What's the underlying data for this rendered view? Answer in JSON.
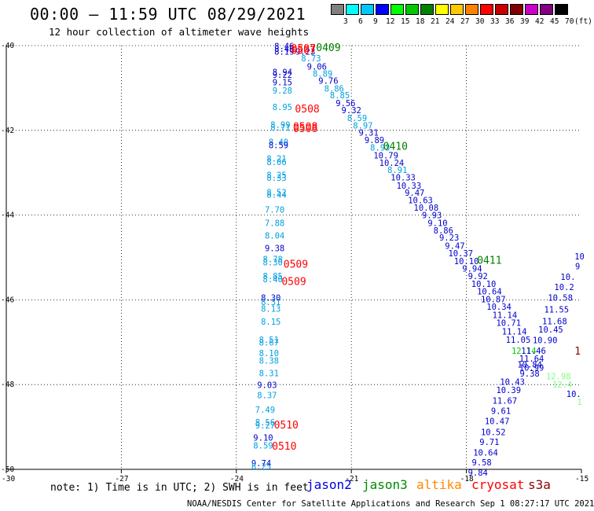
{
  "header": {
    "title": "00:00 – 11:59 UTC 08/29/2021",
    "subtitle": "12 hour collection of altimeter wave heights"
  },
  "legend": {
    "unit": "(ft)",
    "bins": [
      {
        "label": "3",
        "color": "#808080"
      },
      {
        "label": "6",
        "color": "#00ffff"
      },
      {
        "label": "9",
        "color": "#00c8ff"
      },
      {
        "label": "12",
        "color": "#0000ff"
      },
      {
        "label": "15",
        "color": "#00ff00"
      },
      {
        "label": "18",
        "color": "#00c800"
      },
      {
        "label": "21",
        "color": "#008200"
      },
      {
        "label": "24",
        "color": "#ffff00"
      },
      {
        "label": "27",
        "color": "#ffc800"
      },
      {
        "label": "30",
        "color": "#ff8200"
      },
      {
        "label": "33",
        "color": "#ff0000"
      },
      {
        "label": "36",
        "color": "#c80000"
      },
      {
        "label": "39",
        "color": "#820000"
      },
      {
        "label": "42",
        "color": "#c800c8"
      },
      {
        "label": "45",
        "color": "#820082"
      },
      {
        "label": "70",
        "color": "#000000"
      }
    ]
  },
  "footer": {
    "note": "note: 1) Time is in UTC; 2) SWH is in feet",
    "satellites": [
      {
        "name": "jason2",
        "color": "#0000dd"
      },
      {
        "name": "jason3",
        "color": "#008800"
      },
      {
        "name": "altika",
        "color": "#ff8800"
      },
      {
        "name": "cryosat",
        "color": "#ff0000"
      },
      {
        "name": "s3a",
        "color": "#8b0000"
      }
    ],
    "credit": "NOAA/NESDIS Center for Satellite Applications and Research   Sep  1 08:27:17 UTC 2021"
  },
  "colors": {
    "cyan_track": "#00a0e0",
    "blue_track": "#0000cc",
    "time_red": "#ff0000",
    "time_green": "#008000",
    "light_green": "#7fff7f",
    "dark_red": "#8b0000"
  },
  "chart_data": {
    "type": "scatter",
    "title": "00:00 – 11:59 UTC 08/29/2021",
    "subtitle": "12 hour collection of altimeter wave heights",
    "xlabel": "",
    "ylabel": "",
    "xlim": [
      -30,
      -15
    ],
    "ylim": [
      -50,
      -40
    ],
    "x_ticks": [
      "-30",
      "-27",
      "-24",
      "-21",
      "-18",
      "-15"
    ],
    "y_ticks": [
      "-40",
      "-42",
      "-44",
      "-46",
      "-48",
      "-50"
    ],
    "grid": true,
    "point_labels": [
      {
        "t": "8.46",
        "x": -22.75,
        "y": -40.01,
        "c": "#0000cc"
      },
      {
        "t": "8.46",
        "x": -22.75,
        "y": -40.07,
        "c": "#0000cc"
      },
      {
        "t": "8.19",
        "x": -22.75,
        "y": -40.14,
        "c": "#0000cc"
      },
      {
        "t": "9.23",
        "x": -22.2,
        "y": -40.14,
        "c": "#0000cc"
      },
      {
        "t": "8.73",
        "x": -22.05,
        "y": -40.3,
        "c": "#00a0e0"
      },
      {
        "t": "9.06",
        "x": -21.9,
        "y": -40.49,
        "c": "#0000cc"
      },
      {
        "t": "8.94",
        "x": -22.8,
        "y": -40.62,
        "c": "#0000cc"
      },
      {
        "t": "9.22",
        "x": -22.8,
        "y": -40.69,
        "c": "#0000cc"
      },
      {
        "t": "8.89",
        "x": -21.75,
        "y": -40.66,
        "c": "#00a0e0"
      },
      {
        "t": "9.15",
        "x": -22.8,
        "y": -40.86,
        "c": "#0000cc"
      },
      {
        "t": "9.76",
        "x": -21.6,
        "y": -40.83,
        "c": "#0000cc"
      },
      {
        "t": "8.86",
        "x": -21.45,
        "y": -41.01,
        "c": "#00a0e0"
      },
      {
        "t": "9.28",
        "x": -22.8,
        "y": -41.06,
        "c": "#00a0e0"
      },
      {
        "t": "8.85",
        "x": -21.3,
        "y": -41.17,
        "c": "#00a0e0"
      },
      {
        "t": "9.56",
        "x": -21.15,
        "y": -41.35,
        "c": "#0000cc"
      },
      {
        "t": "8.95",
        "x": -22.8,
        "y": -41.45,
        "c": "#00a0e0"
      },
      {
        "t": "9.32",
        "x": -21.0,
        "y": -41.52,
        "c": "#0000cc"
      },
      {
        "t": "8.59",
        "x": -20.85,
        "y": -41.71,
        "c": "#00a0e0"
      },
      {
        "t": "8.99",
        "x": -22.85,
        "y": -41.86,
        "c": "#00a0e0"
      },
      {
        "t": "8.71",
        "x": -22.85,
        "y": -41.93,
        "c": "#00a0e0"
      },
      {
        "t": "8.97",
        "x": -20.7,
        "y": -41.88,
        "c": "#00a0e0"
      },
      {
        "t": "9.31",
        "x": -20.55,
        "y": -42.05,
        "c": "#0000cc"
      },
      {
        "t": "9.89",
        "x": -20.4,
        "y": -42.23,
        "c": "#0000cc"
      },
      {
        "t": "8.40",
        "x": -22.9,
        "y": -42.27,
        "c": "#00a0e0"
      },
      {
        "t": "8.59",
        "x": -22.9,
        "y": -42.35,
        "c": "#0000cc"
      },
      {
        "t": "8.93",
        "x": -20.25,
        "y": -42.4,
        "c": "#00a0e0"
      },
      {
        "t": "10.79",
        "x": -20.1,
        "y": -42.59,
        "c": "#0000cc"
      },
      {
        "t": "8.21",
        "x": -22.95,
        "y": -42.66,
        "c": "#00a0e0"
      },
      {
        "t": "8.06",
        "x": -22.95,
        "y": -42.75,
        "c": "#00a0e0"
      },
      {
        "t": "10.24",
        "x": -19.95,
        "y": -42.76,
        "c": "#0000cc"
      },
      {
        "t": "8.91",
        "x": -19.8,
        "y": -42.93,
        "c": "#00a0e0"
      },
      {
        "t": "8.25",
        "x": -22.95,
        "y": -43.05,
        "c": "#00a0e0"
      },
      {
        "t": "8.33",
        "x": -22.95,
        "y": -43.12,
        "c": "#00a0e0"
      },
      {
        "t": "10.33",
        "x": -19.65,
        "y": -43.11,
        "c": "#0000cc"
      },
      {
        "t": "10.33",
        "x": -19.5,
        "y": -43.3,
        "c": "#0000cc"
      },
      {
        "t": "8.52",
        "x": -22.95,
        "y": -43.46,
        "c": "#00a0e0"
      },
      {
        "t": "8.44",
        "x": -22.95,
        "y": -43.52,
        "c": "#00a0e0"
      },
      {
        "t": "9.47",
        "x": -19.35,
        "y": -43.47,
        "c": "#0000cc"
      },
      {
        "t": "10.63",
        "x": -19.2,
        "y": -43.65,
        "c": "#0000cc"
      },
      {
        "t": "10.08",
        "x": -19.05,
        "y": -43.82,
        "c": "#0000cc"
      },
      {
        "t": "7.70",
        "x": -23.0,
        "y": -43.87,
        "c": "#00a0e0"
      },
      {
        "t": "9.93",
        "x": -18.9,
        "y": -44.0,
        "c": "#0000cc"
      },
      {
        "t": "7.88",
        "x": -23.0,
        "y": -44.18,
        "c": "#00a0e0"
      },
      {
        "t": "9.10",
        "x": -18.75,
        "y": -44.18,
        "c": "#0000cc"
      },
      {
        "t": "8.86",
        "x": -18.6,
        "y": -44.36,
        "c": "#0000cc"
      },
      {
        "t": "8.04",
        "x": -23.0,
        "y": -44.48,
        "c": "#00a0e0"
      },
      {
        "t": "9.23",
        "x": -18.45,
        "y": -44.53,
        "c": "#0000cc"
      },
      {
        "t": "9.38",
        "x": -23.0,
        "y": -44.78,
        "c": "#0000cc"
      },
      {
        "t": "9.47",
        "x": -18.3,
        "y": -44.72,
        "c": "#0000cc"
      },
      {
        "t": "8.78",
        "x": -23.05,
        "y": -45.04,
        "c": "#00a0e0"
      },
      {
        "t": "8.30",
        "x": -23.05,
        "y": -45.11,
        "c": "#00a0e0"
      },
      {
        "t": "10.37",
        "x": -18.15,
        "y": -44.9,
        "c": "#0000cc"
      },
      {
        "t": "10.10",
        "x": -18.0,
        "y": -45.08,
        "c": "#0000cc"
      },
      {
        "t": "9.94",
        "x": -17.85,
        "y": -45.26,
        "c": "#0000cc"
      },
      {
        "t": "8.85",
        "x": -23.05,
        "y": -45.44,
        "c": "#00a0e0"
      },
      {
        "t": "8.40",
        "x": -23.05,
        "y": -45.51,
        "c": "#00a0e0"
      },
      {
        "t": "9.92",
        "x": -17.7,
        "y": -45.44,
        "c": "#0000cc"
      },
      {
        "t": "10.10",
        "x": -17.55,
        "y": -45.62,
        "c": "#0000cc"
      },
      {
        "t": "10.64",
        "x": -17.4,
        "y": -45.8,
        "c": "#0000cc"
      },
      {
        "t": "8.30",
        "x": -23.1,
        "y": -45.95,
        "c": "#0000cc"
      },
      {
        "t": "8.31",
        "x": -23.1,
        "y": -46.05,
        "c": "#00a0e0"
      },
      {
        "t": "10.87",
        "x": -17.3,
        "y": -45.98,
        "c": "#0000cc"
      },
      {
        "t": "8.13",
        "x": -23.1,
        "y": -46.21,
        "c": "#00a0e0"
      },
      {
        "t": "10.34",
        "x": -17.15,
        "y": -46.16,
        "c": "#0000cc"
      },
      {
        "t": "11.14",
        "x": -17.0,
        "y": -46.35,
        "c": "#0000cc"
      },
      {
        "t": "8.15",
        "x": -23.1,
        "y": -46.51,
        "c": "#00a0e0"
      },
      {
        "t": "10.71",
        "x": -16.9,
        "y": -46.54,
        "c": "#0000cc"
      },
      {
        "t": "11.14",
        "x": -16.75,
        "y": -46.74,
        "c": "#0000cc"
      },
      {
        "t": "8.51",
        "x": -23.15,
        "y": -46.94,
        "c": "#00a0e0"
      },
      {
        "t": "8.67",
        "x": -23.15,
        "y": -47.0,
        "c": "#00a0e0"
      },
      {
        "t": "11.05",
        "x": -16.65,
        "y": -46.94,
        "c": "#0000cc"
      },
      {
        "t": "8.10",
        "x": -23.15,
        "y": -47.25,
        "c": "#00a0e0"
      },
      {
        "t": "8.38",
        "x": -23.15,
        "y": -47.43,
        "c": "#00a0e0"
      },
      {
        "t": "8.31",
        "x": -23.15,
        "y": -47.73,
        "c": "#00a0e0"
      },
      {
        "t": "9.03",
        "x": -23.2,
        "y": -48.01,
        "c": "#0000cc"
      },
      {
        "t": "8.37",
        "x": -23.2,
        "y": -48.25,
        "c": "#00a0e0"
      },
      {
        "t": "7.49",
        "x": -23.25,
        "y": -48.59,
        "c": "#00a0e0"
      },
      {
        "t": "8.56",
        "x": -23.25,
        "y": -48.89,
        "c": "#00a0e0"
      },
      {
        "t": "9.27",
        "x": -23.25,
        "y": -48.96,
        "c": "#00a0e0"
      },
      {
        "t": "9.10",
        "x": -23.3,
        "y": -49.25,
        "c": "#0000cc"
      },
      {
        "t": "8.59",
        "x": -23.3,
        "y": -49.43,
        "c": "#00a0e0"
      },
      {
        "t": "9.74",
        "x": -23.35,
        "y": -49.85,
        "c": "#0000cc"
      },
      {
        "t": "8.25",
        "x": -23.35,
        "y": -49.93,
        "c": "#00a0e0"
      },
      {
        "t": "10.43",
        "x": -16.8,
        "y": -47.93,
        "c": "#0000cc"
      },
      {
        "t": "10.39",
        "x": -16.9,
        "y": -48.13,
        "c": "#0000cc"
      },
      {
        "t": "11.67",
        "x": -17.0,
        "y": -48.38,
        "c": "#0000cc"
      },
      {
        "t": "9.61",
        "x": -17.1,
        "y": -48.62,
        "c": "#0000cc"
      },
      {
        "t": "10.47",
        "x": -17.2,
        "y": -48.86,
        "c": "#0000cc"
      },
      {
        "t": "10.52",
        "x": -17.3,
        "y": -49.12,
        "c": "#0000cc"
      },
      {
        "t": "9.71",
        "x": -17.4,
        "y": -49.35,
        "c": "#0000cc"
      },
      {
        "t": "10.64",
        "x": -17.5,
        "y": -49.6,
        "c": "#0000cc"
      },
      {
        "t": "9.58",
        "x": -17.6,
        "y": -49.83,
        "c": "#0000cc"
      },
      {
        "t": "9.84",
        "x": -17.7,
        "y": -50.07,
        "c": "#0000cc"
      },
      {
        "t": "10.45",
        "x": -15.8,
        "y": -46.7,
        "c": "#0000cc"
      },
      {
        "t": "10.90",
        "x": -15.95,
        "y": -46.95,
        "c": "#0000cc"
      },
      {
        "t": "12.14",
        "x": -16.5,
        "y": -47.2,
        "c": "#00c800"
      },
      {
        "t": "11.46",
        "x": -16.25,
        "y": -47.2,
        "c": "#0000cc"
      },
      {
        "t": "11.64",
        "x": -16.3,
        "y": -47.38,
        "c": "#0000cc"
      },
      {
        "t": "10.84",
        "x": -16.35,
        "y": -47.52,
        "c": "#0000cc"
      },
      {
        "t": "10.99",
        "x": -16.3,
        "y": -47.6,
        "c": "#0000cc"
      },
      {
        "t": "9.38",
        "x": -16.35,
        "y": -47.74,
        "c": "#0000cc"
      },
      {
        "t": "11.68",
        "x": -15.7,
        "y": -46.5,
        "c": "#0000cc"
      },
      {
        "t": "11.55",
        "x": -15.65,
        "y": -46.22,
        "c": "#0000cc"
      },
      {
        "t": "10.58",
        "x": -15.55,
        "y": -45.95,
        "c": "#0000cc"
      },
      {
        "t": "10.2",
        "x": -15.45,
        "y": -45.7,
        "c": "#0000cc"
      },
      {
        "t": "10.",
        "x": -15.35,
        "y": -45.45,
        "c": "#0000cc"
      },
      {
        "t": "9",
        "x": -15.1,
        "y": -45.2,
        "c": "#0000cc"
      },
      {
        "t": "10",
        "x": -15.05,
        "y": -44.97,
        "c": "#0000cc"
      },
      {
        "t": "12.98",
        "x": -15.6,
        "y": -47.8,
        "c": "#7fff7f"
      },
      {
        "t": "12.4",
        "x": -15.5,
        "y": -48.0,
        "c": "#7fff7f"
      },
      {
        "t": "10.",
        "x": -15.2,
        "y": -48.22,
        "c": "#0000cc"
      },
      {
        "t": "1",
        "x": -15.05,
        "y": -48.4,
        "c": "#7fff7f"
      }
    ],
    "time_labels": [
      {
        "t": "0507",
        "x": -22.25,
        "y": -40.06,
        "c": "#ff0000"
      },
      {
        "t": "0507",
        "x": -22.25,
        "y": -40.1,
        "c": "#ff0000"
      },
      {
        "t": "0409",
        "x": -21.6,
        "y": -40.04,
        "c": "#008000"
      },
      {
        "t": "0508",
        "x": -22.15,
        "y": -41.48,
        "c": "#ff0000"
      },
      {
        "t": "0508",
        "x": -22.2,
        "y": -41.9,
        "c": "#ff0000"
      },
      {
        "t": "0508",
        "x": -22.2,
        "y": -41.95,
        "c": "#ff0000"
      },
      {
        "t": "0410",
        "x": -19.85,
        "y": -42.37,
        "c": "#008000"
      },
      {
        "t": "0509",
        "x": -22.45,
        "y": -45.15,
        "c": "#ff0000"
      },
      {
        "t": "0509",
        "x": -22.5,
        "y": -45.56,
        "c": "#ff0000"
      },
      {
        "t": "0411",
        "x": -17.4,
        "y": -45.06,
        "c": "#008000"
      },
      {
        "t": "0510",
        "x": -22.7,
        "y": -48.94,
        "c": "#ff0000"
      },
      {
        "t": "0510",
        "x": -22.75,
        "y": -49.44,
        "c": "#ff0000"
      },
      {
        "t": "1",
        "x": -15.1,
        "y": -47.2,
        "c": "#8b0000"
      }
    ]
  }
}
